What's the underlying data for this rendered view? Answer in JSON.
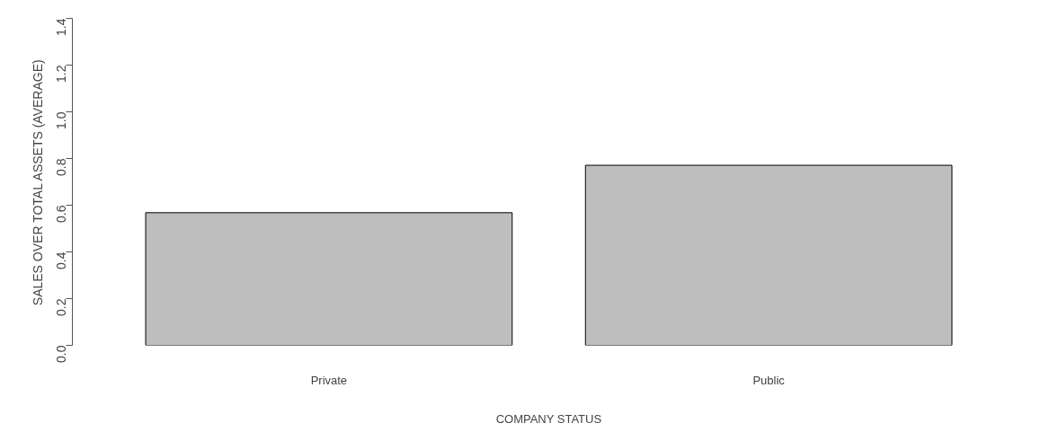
{
  "chart_data": {
    "type": "bar",
    "xlabel": "COMPANY STATUS",
    "ylabel": "SALES OVER TOTAL ASSETS (AVERAGE)",
    "categories": [
      "Private",
      "Public"
    ],
    "values": [
      0.568,
      0.771
    ],
    "color": "#bebebe",
    "ylim": [
      0,
      1.4
    ],
    "yticks": [
      {
        "value": 0,
        "label": "0.0"
      },
      {
        "value": 0.2,
        "label": "0.2"
      },
      {
        "value": 0.4,
        "label": "0.4"
      },
      {
        "value": 0.6,
        "label": "0.6"
      },
      {
        "value": 0.8,
        "label": "0.8"
      },
      {
        "value": 1,
        "label": "1.0"
      },
      {
        "value": 1.2,
        "label": "1.2"
      },
      {
        "value": 1.4,
        "label": "1.4"
      }
    ],
    "grid": false
  }
}
